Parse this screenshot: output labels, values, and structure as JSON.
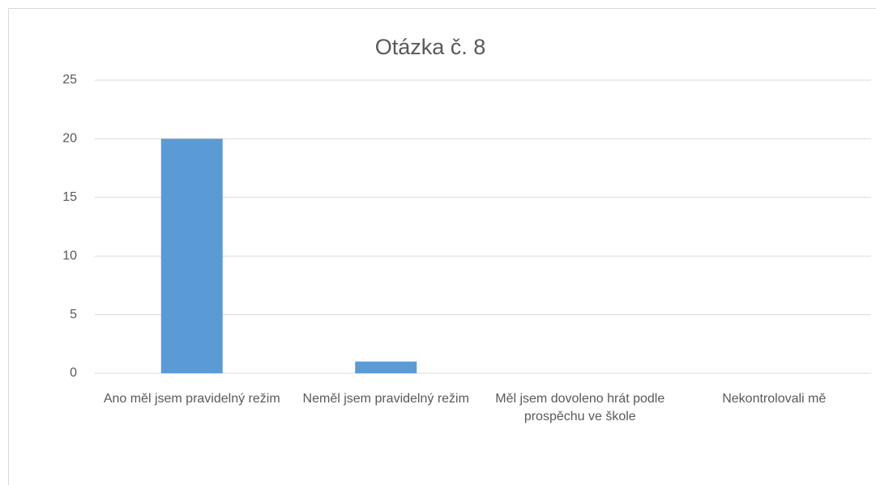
{
  "chart_data": {
    "type": "bar",
    "title": "Otázka č. 8",
    "categories": [
      "Ano měl jsem pravidelný režim",
      "Neměl jsem pravidelný režim",
      "Měl jsem dovoleno hrát podle prospěchu ve škole",
      "Nekontrolovali mě"
    ],
    "values": [
      20,
      1,
      0,
      0
    ],
    "color": "#5b9bd5",
    "ylim": [
      0,
      25
    ],
    "yticks": [
      0,
      5,
      10,
      15,
      20,
      25
    ],
    "grid": true
  }
}
